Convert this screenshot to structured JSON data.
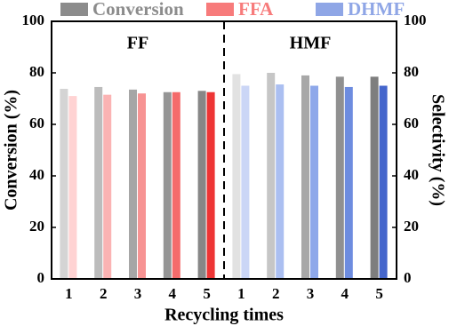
{
  "chart_data": {
    "type": "grouped_bar",
    "xlabel": "Recycling times",
    "ylabel": "Conversion (%)",
    "y2label": "Selectivity (%)",
    "ylim": [
      0,
      100
    ],
    "yticks": [
      0,
      20,
      40,
      60,
      80,
      100
    ],
    "y2lim": [
      0,
      100
    ],
    "y2ticks": [
      0,
      20,
      40,
      60,
      80,
      100
    ],
    "legend_colors": [
      "#8c8c8c",
      "#f77b7b",
      "#8fa6e6"
    ],
    "panels": [
      {
        "label": "FF",
        "categories": [
          "1",
          "2",
          "3",
          "4",
          "5"
        ],
        "series": [
          {
            "name": "Conversion",
            "colors": [
              "#d4d4d4",
              "#bcbcbc",
              "#a6a6a6",
              "#959595",
              "#878787"
            ],
            "values": [
              73.8,
              74.5,
              73.5,
              72.5,
              73
            ]
          },
          {
            "name": "FFA",
            "axis": "y2",
            "colors": [
              "#ffd3d3",
              "#fbb3b3",
              "#f79393",
              "#f46b6b",
              "#ee3535"
            ],
            "values": [
              71,
              71.5,
              72,
              72.5,
              72.5
            ]
          }
        ]
      },
      {
        "label": "HMF",
        "categories": [
          "1",
          "2",
          "3",
          "4",
          "5"
        ],
        "series": [
          {
            "colors": [
              "#e2e2e2",
              "#c6c6c6",
              "#a8a8a8",
              "#909090",
              "#7e7e7e"
            ],
            "values": [
              79.5,
              80,
              79,
              78.5,
              78.5
            ]
          },
          {
            "name": "DHMF",
            "axis": "y2",
            "colors": [
              "#cbd6f6",
              "#abbff1",
              "#8ea8ea",
              "#6d8cdf",
              "#4566cc"
            ],
            "values": [
              75,
              75.5,
              75,
              74.5,
              75
            ]
          }
        ]
      }
    ]
  }
}
